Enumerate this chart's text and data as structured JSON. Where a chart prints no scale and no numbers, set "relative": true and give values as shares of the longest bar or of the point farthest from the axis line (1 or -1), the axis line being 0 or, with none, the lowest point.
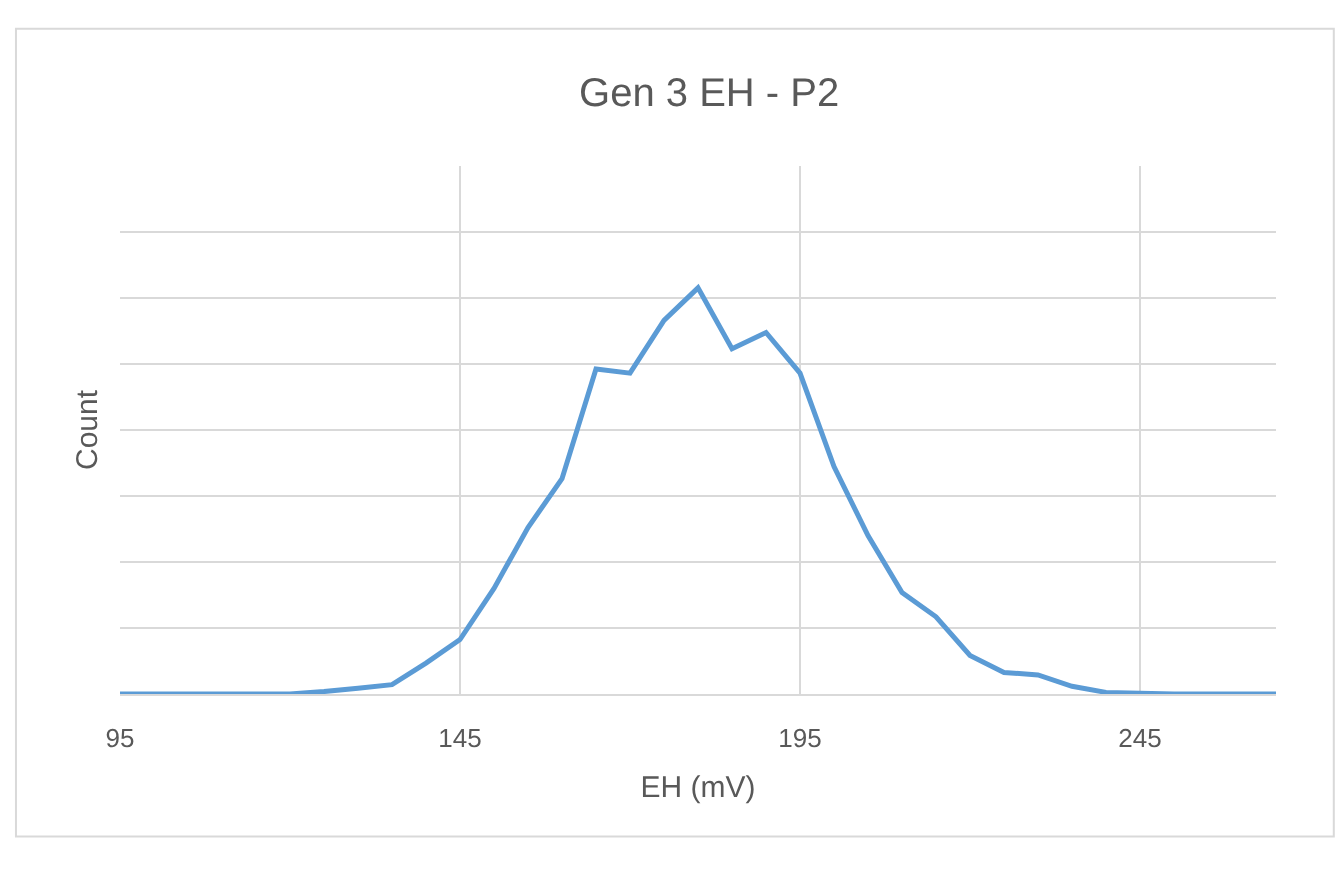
{
  "chart_data": {
    "type": "line",
    "title": "Gen 3 EH - P2",
    "xlabel": "EH (mV)",
    "ylabel": "Count",
    "relative": true,
    "x": [
      95,
      100,
      105,
      110,
      115,
      120,
      125,
      130,
      135,
      140,
      145,
      150,
      155,
      160,
      165,
      170,
      175,
      180,
      185,
      190,
      195,
      200,
      205,
      210,
      215,
      220,
      225,
      230,
      235,
      240,
      245,
      250,
      255,
      260,
      265
    ],
    "series": [
      {
        "color": "#5b9bd5",
        "values": [
          0,
          0,
          0,
          0,
          0,
          0,
          0.006,
          0.014,
          0.023,
          0.076,
          0.134,
          0.26,
          0.41,
          0.53,
          0.8,
          0.79,
          0.92,
          1,
          0.85,
          0.89,
          0.79,
          0.56,
          0.39,
          0.25,
          0.19,
          0.095,
          0.053,
          0.047,
          0.019,
          0.004,
          0.002,
          0,
          0,
          0,
          0
        ]
      }
    ],
    "xlim": [
      95,
      265
    ],
    "xticks": [
      95,
      145,
      195,
      245
    ],
    "grid": true,
    "marker": "none",
    "line_style": "solid"
  }
}
